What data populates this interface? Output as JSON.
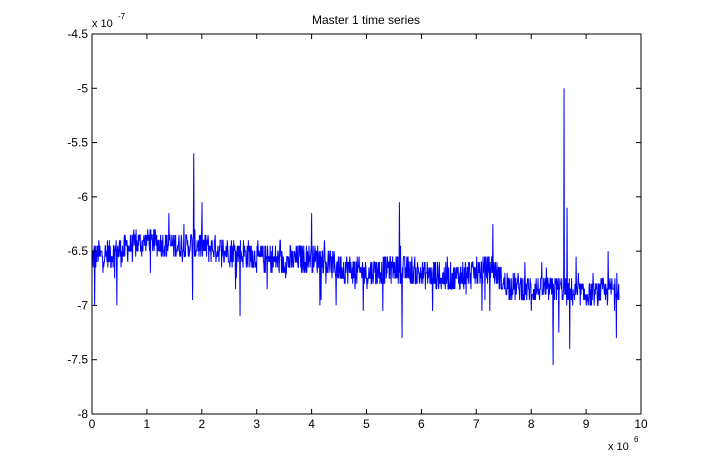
{
  "chart_data": {
    "type": "line",
    "title": "Master 1 time series",
    "xlabel": "",
    "ylabel": "",
    "x_multiplier": {
      "base": "x 10",
      "exponent": "6"
    },
    "y_multiplier": {
      "base": "x 10",
      "exponent": "-7"
    },
    "xlim": [
      0,
      10
    ],
    "ylim": [
      -8,
      -4.5
    ],
    "xticks": [
      0,
      1,
      2,
      3,
      4,
      5,
      6,
      7,
      8,
      9,
      10
    ],
    "xtick_labels": [
      "0",
      "1",
      "2",
      "3",
      "4",
      "5",
      "6",
      "7",
      "8",
      "9",
      "10"
    ],
    "yticks": [
      -8,
      -7.5,
      -7,
      -6.5,
      -6,
      -5.5,
      -5,
      -4.5
    ],
    "ytick_labels": [
      "-8",
      "-7.5",
      "-7",
      "-6.5",
      "-6",
      "-5.5",
      "-5",
      "-4.5"
    ],
    "grid": false,
    "series": [
      {
        "color": "#0000ff",
        "band": {
          "x": [
            0,
            0.5,
            1.0,
            1.5,
            2.0,
            2.5,
            3.0,
            3.5,
            4.0,
            4.5,
            5.0,
            5.5,
            6.0,
            6.5,
            7.0,
            7.3,
            7.5,
            8.0,
            8.5,
            9.0,
            9.6
          ],
          "center": [
            -6.55,
            -6.5,
            -6.4,
            -6.45,
            -6.45,
            -6.5,
            -6.55,
            -6.6,
            -6.55,
            -6.65,
            -6.7,
            -6.65,
            -6.7,
            -6.75,
            -6.7,
            -6.65,
            -6.8,
            -6.85,
            -6.85,
            -6.9,
            -6.85
          ],
          "spread": [
            0.12,
            0.14,
            0.12,
            0.12,
            0.13,
            0.13,
            0.13,
            0.13,
            0.13,
            0.13,
            0.13,
            0.13,
            0.13,
            0.13,
            0.13,
            0.13,
            0.13,
            0.12,
            0.12,
            0.12,
            0.12
          ]
        },
        "spikes": [
          {
            "x": 0.05,
            "y": -7.0
          },
          {
            "x": 0.45,
            "y": -7.0
          },
          {
            "x": 1.4,
            "y": -6.15
          },
          {
            "x": 1.85,
            "y": -5.6
          },
          {
            "x": 1.83,
            "y": -6.95
          },
          {
            "x": 2.7,
            "y": -7.1
          },
          {
            "x": 4.0,
            "y": -6.15
          },
          {
            "x": 4.15,
            "y": -7.0
          },
          {
            "x": 4.45,
            "y": -7.0
          },
          {
            "x": 5.6,
            "y": -6.05
          },
          {
            "x": 5.65,
            "y": -7.3
          },
          {
            "x": 5.3,
            "y": -7.05
          },
          {
            "x": 6.2,
            "y": -7.05
          },
          {
            "x": 7.3,
            "y": -6.25
          },
          {
            "x": 7.1,
            "y": -7.05
          },
          {
            "x": 8.0,
            "y": -7.05
          },
          {
            "x": 8.4,
            "y": -7.55
          },
          {
            "x": 8.5,
            "y": -7.25
          },
          {
            "x": 8.6,
            "y": -5.0
          },
          {
            "x": 8.7,
            "y": -7.4
          },
          {
            "x": 8.65,
            "y": -6.1
          },
          {
            "x": 9.55,
            "y": -7.3
          },
          {
            "x": 9.4,
            "y": -6.5
          }
        ],
        "n_samples": 1400
      }
    ],
    "line_color": "#0000ff",
    "axes_color": "#000000",
    "background": "#ffffff"
  }
}
